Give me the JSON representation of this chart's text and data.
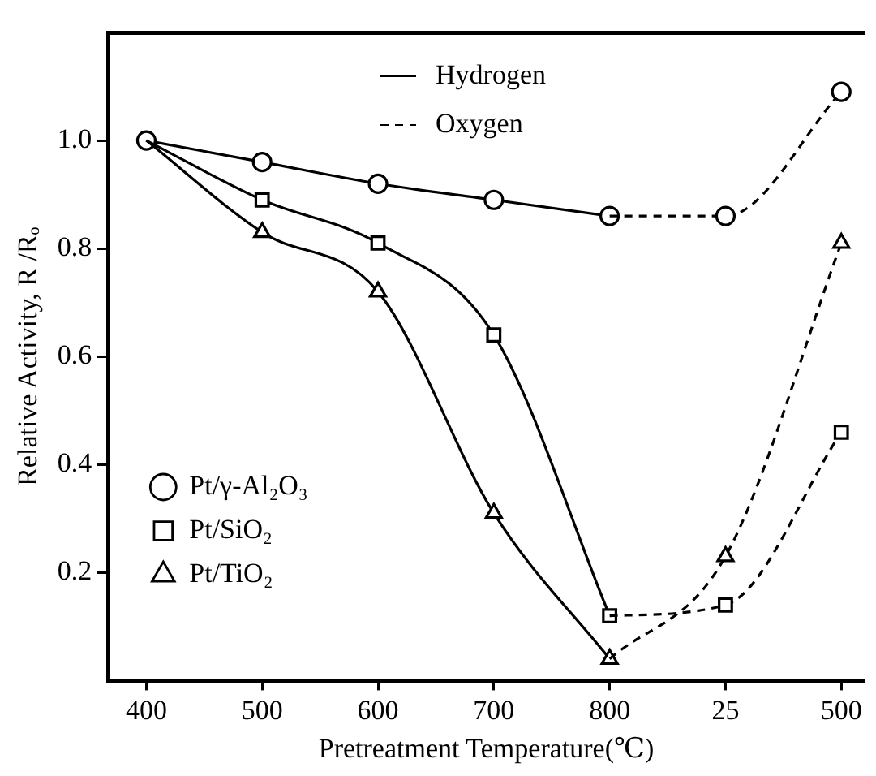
{
  "chart_data": {
    "type": "line",
    "xlabel": "Pretreatment Temperature(℃)",
    "ylabel": "Relative Activity, R /Rₒ",
    "categories": [
      "400",
      "500",
      "600",
      "700",
      "800",
      "25",
      "500"
    ],
    "ylim": [
      0,
      1.2
    ],
    "yticks": [
      0.2,
      0.4,
      0.6,
      0.8,
      {
        "value": 1,
        "label": "1.0"
      }
    ],
    "legend": "left",
    "series": [
      {
        "name": "Pt/γ-Al₂O₃",
        "color": "#000000",
        "marker": "circle",
        "line_style": "solid",
        "values": [
          1.0,
          0.96,
          0.92,
          0.89,
          0.86,
          null,
          null
        ]
      },
      {
        "color": "#000000",
        "marker": "circle",
        "line_style": "dashed",
        "values": [
          null,
          null,
          null,
          null,
          0.86,
          0.86,
          1.09
        ]
      },
      {
        "name": "Pt/SiO₂",
        "color": "#000000",
        "marker": "square",
        "line_style": "solid",
        "values": [
          1.0,
          0.89,
          0.81,
          0.64,
          0.12,
          null,
          null
        ]
      },
      {
        "color": "#000000",
        "marker": "square",
        "line_style": "dashed",
        "values": [
          null,
          null,
          null,
          null,
          0.12,
          0.14,
          0.46
        ]
      },
      {
        "name": "Pt/TiO₂",
        "color": "#000000",
        "marker": "triangle",
        "line_style": "solid",
        "values": [
          1.0,
          0.83,
          0.72,
          0.31,
          0.04,
          null,
          null
        ]
      },
      {
        "color": "#000000",
        "marker": "triangle",
        "line_style": "dashed",
        "values": [
          null,
          null,
          null,
          null,
          0.04,
          0.23,
          0.81
        ]
      },
      {
        "name": "Hydrogen",
        "color": "#000000",
        "marker": "none",
        "line_style": "solid",
        "values": [
          null,
          null,
          null,
          null,
          null,
          null,
          null
        ]
      },
      {
        "name": "Oxygen",
        "color": "#000000",
        "marker": "none",
        "line_style": "dashed",
        "values": [
          null,
          null,
          null,
          null,
          null,
          null,
          null
        ]
      }
    ]
  }
}
